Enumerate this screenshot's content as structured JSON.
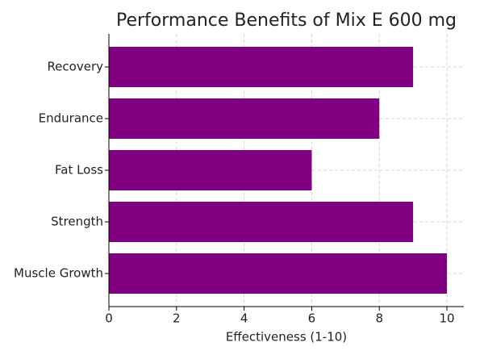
{
  "chart_data": {
    "type": "barh",
    "title": "Performance Benefits of Mix E 600 mg",
    "x_label": "Effectiveness (1-10)",
    "categories": [
      "Muscle Growth",
      "Strength",
      "Fat Loss",
      "Endurance",
      "Recovery"
    ],
    "values": [
      10,
      9,
      6,
      8,
      9
    ],
    "color": "#800080",
    "xlim": [
      0,
      10.5
    ],
    "xticks": [
      0,
      2,
      4,
      6,
      8,
      10
    ],
    "grid": true
  }
}
